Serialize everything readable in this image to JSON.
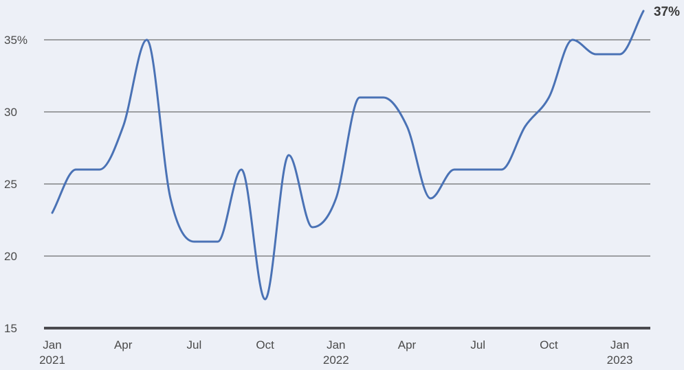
{
  "chart_data": {
    "type": "line",
    "title": "",
    "xlabel": "",
    "ylabel": "",
    "ylim": [
      15,
      37
    ],
    "y_ticks": [
      {
        "value": 15,
        "label": "15"
      },
      {
        "value": 20,
        "label": "20"
      },
      {
        "value": 25,
        "label": "25"
      },
      {
        "value": 30,
        "label": "30"
      },
      {
        "value": 35,
        "label": "35%"
      }
    ],
    "x_ticks": [
      {
        "date": "2021-01",
        "label": "Jan",
        "label2": "2021"
      },
      {
        "date": "2021-04",
        "label": "Apr",
        "label2": ""
      },
      {
        "date": "2021-07",
        "label": "Jul",
        "label2": ""
      },
      {
        "date": "2021-10",
        "label": "Oct",
        "label2": ""
      },
      {
        "date": "2022-01",
        "label": "Jan",
        "label2": "2022"
      },
      {
        "date": "2022-04",
        "label": "Apr",
        "label2": ""
      },
      {
        "date": "2022-07",
        "label": "Jul",
        "label2": ""
      },
      {
        "date": "2022-10",
        "label": "Oct",
        "label2": ""
      },
      {
        "date": "2023-01",
        "label": "Jan",
        "label2": "2023"
      }
    ],
    "series": [
      {
        "x": [
          "2021-01",
          "2021-02",
          "2021-03",
          "2021-04",
          "2021-05",
          "2021-06",
          "2021-07",
          "2021-08",
          "2021-09",
          "2021-10",
          "2021-11",
          "2021-12",
          "2022-01",
          "2022-02",
          "2022-03",
          "2022-04",
          "2022-05",
          "2022-06",
          "2022-07",
          "2022-08",
          "2022-09",
          "2022-10",
          "2022-11",
          "2022-12",
          "2023-01",
          "2023-02"
        ],
        "values": [
          23,
          26,
          26,
          29,
          35,
          24,
          21,
          21,
          26,
          17,
          27,
          22,
          24,
          31,
          31,
          29,
          24,
          26,
          26,
          26,
          29,
          31,
          35,
          34,
          34,
          37
        ],
        "color": "#4a72b5"
      }
    ],
    "end_label": "37%",
    "grid": true,
    "legend": "none"
  }
}
